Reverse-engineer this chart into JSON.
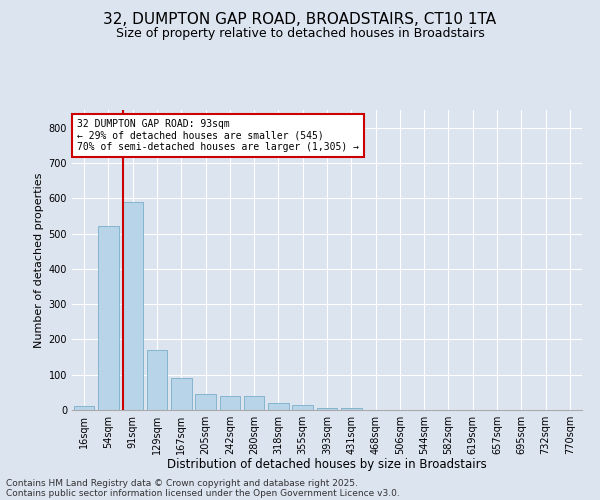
{
  "title1": "32, DUMPTON GAP ROAD, BROADSTAIRS, CT10 1TA",
  "title2": "Size of property relative to detached houses in Broadstairs",
  "xlabel": "Distribution of detached houses by size in Broadstairs",
  "ylabel": "Number of detached properties",
  "categories": [
    "16sqm",
    "54sqm",
    "91sqm",
    "129sqm",
    "167sqm",
    "205sqm",
    "242sqm",
    "280sqm",
    "318sqm",
    "355sqm",
    "393sqm",
    "431sqm",
    "468sqm",
    "506sqm",
    "544sqm",
    "582sqm",
    "619sqm",
    "657sqm",
    "695sqm",
    "732sqm",
    "770sqm"
  ],
  "values": [
    10,
    520,
    590,
    170,
    90,
    45,
    40,
    40,
    20,
    15,
    5,
    5,
    0,
    0,
    0,
    0,
    0,
    0,
    0,
    0,
    0
  ],
  "bar_color": "#b8d4e8",
  "bar_edge_color": "#7aaec8",
  "vline_color": "#cc0000",
  "vline_x_index": 2,
  "annotation_title": "32 DUMPTON GAP ROAD: 93sqm",
  "annotation_line1": "← 29% of detached houses are smaller (545)",
  "annotation_line2": "70% of semi-detached houses are larger (1,305) →",
  "annotation_box_color": "white",
  "annotation_box_edge": "#cc0000",
  "ylim": [
    0,
    850
  ],
  "yticks": [
    0,
    100,
    200,
    300,
    400,
    500,
    600,
    700,
    800
  ],
  "footer1": "Contains HM Land Registry data © Crown copyright and database right 2025.",
  "footer2": "Contains public sector information licensed under the Open Government Licence v3.0.",
  "bg_color": "#dce4f0",
  "plot_bg_color": "#dce4f0",
  "title1_fontsize": 11,
  "title2_fontsize": 9,
  "xlabel_fontsize": 8.5,
  "ylabel_fontsize": 8,
  "tick_fontsize": 7,
  "footer_fontsize": 6.5,
  "grid_color": "#ffffff",
  "spine_color": "#aaaaaa"
}
